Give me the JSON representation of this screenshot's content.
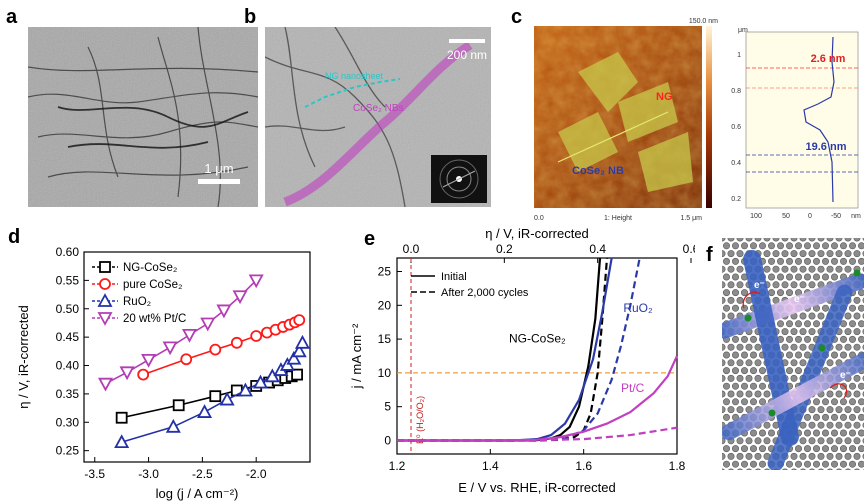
{
  "panels": {
    "a": {
      "letter": "a",
      "scalebar": "1 μm"
    },
    "b": {
      "letter": "b",
      "scalebar": "200 nm",
      "label_ng": "NG nanosheet",
      "label_cose": "CoSe₂ NBs"
    },
    "c": {
      "letter": "c",
      "colorbar_max": "150.0 nm",
      "label_ng": "NG",
      "label_cose": "CoSe₂ NB",
      "x_axis_left": "0.0",
      "x_axis_mid": "1: Height",
      "x_axis_right": "1.5 μm",
      "profile_unit": "μm",
      "profile_yticks": [
        "1",
        "0.8",
        "0.6",
        "0.4",
        "0.2"
      ],
      "profile_xticks": [
        "100",
        "50",
        "0",
        "-50",
        "nm"
      ],
      "profile_label_top": "2.6 nm",
      "profile_label_bottom": "19.6 nm"
    },
    "d": {
      "letter": "d"
    },
    "e": {
      "letter": "e"
    },
    "f": {
      "letter": "f",
      "electron_label": "e⁻"
    }
  },
  "chart_data": [
    {
      "id": "d",
      "type": "line",
      "xlabel": "log (j / A cm⁻²)",
      "ylabel": "η / V, iR-corrected",
      "xlim": [
        -3.6,
        -1.5
      ],
      "ylim": [
        0.23,
        0.6
      ],
      "xticks": [
        -3.5,
        -3.0,
        -2.5,
        -2.0
      ],
      "yticks": [
        0.25,
        0.3,
        0.35,
        0.4,
        0.45,
        0.5,
        0.55,
        0.6
      ],
      "legend_position": "top-left",
      "series": [
        {
          "name": "NG-CoSe₂",
          "color": "#000000",
          "marker": "square",
          "x": [
            -3.25,
            -2.72,
            -2.38,
            -2.18,
            -2.0,
            -1.88,
            -1.8,
            -1.73,
            -1.67,
            -1.62
          ],
          "y": [
            0.308,
            0.33,
            0.346,
            0.356,
            0.364,
            0.37,
            0.374,
            0.378,
            0.381,
            0.384
          ]
        },
        {
          "name": "pure CoSe₂",
          "color": "#ff1a1a",
          "marker": "circle",
          "x": [
            -3.05,
            -2.65,
            -2.38,
            -2.18,
            -2.0,
            -1.9,
            -1.82,
            -1.75,
            -1.69,
            -1.64,
            -1.6
          ],
          "y": [
            0.384,
            0.411,
            0.428,
            0.44,
            0.452,
            0.458,
            0.463,
            0.468,
            0.472,
            0.476,
            0.48
          ]
        },
        {
          "name": "RuO₂",
          "color": "#2330a8",
          "marker": "triangle-up",
          "x": [
            -3.25,
            -2.77,
            -2.48,
            -2.27,
            -2.1,
            -1.96,
            -1.85,
            -1.77,
            -1.71,
            -1.65,
            -1.6,
            -1.57
          ],
          "y": [
            0.265,
            0.292,
            0.318,
            0.34,
            0.356,
            0.37,
            0.381,
            0.392,
            0.401,
            0.412,
            0.425,
            0.44
          ]
        },
        {
          "name": "20 wt% Pt/C",
          "color": "#b43cb4",
          "marker": "triangle-down",
          "x": [
            -3.4,
            -3.2,
            -3.0,
            -2.8,
            -2.62,
            -2.45,
            -2.3,
            -2.15,
            -2.0
          ],
          "y": [
            0.368,
            0.388,
            0.41,
            0.432,
            0.454,
            0.474,
            0.497,
            0.522,
            0.55
          ]
        }
      ]
    },
    {
      "id": "e",
      "type": "line",
      "xlabel": "E / V vs. RHE, iR-corrected",
      "x2label": "η / V, iR-corrected",
      "ylabel": "j / mA cm⁻²",
      "xlim": [
        1.2,
        1.8
      ],
      "x2lim": [
        -0.03,
        0.57
      ],
      "ylim": [
        -2,
        27
      ],
      "xticks": [
        1.2,
        1.4,
        1.6,
        1.8
      ],
      "x2ticks": [
        0.0,
        0.2,
        0.4,
        0.6
      ],
      "yticks": [
        0,
        5,
        10,
        15,
        20,
        25
      ],
      "legend": [
        "Initial",
        "After 2,000 cycles"
      ],
      "legend_position": "top-left",
      "series_labels": [
        "NG-CoSe₂",
        "RuO₂",
        "Pt/C"
      ],
      "annotation": "E⁰ (H₂O/O₂)",
      "reference_lines": {
        "vertical_x": 1.23,
        "horizontal_y": 10
      },
      "series": [
        {
          "name": "NG-CoSe₂ initial",
          "color": "#000000",
          "dash": false,
          "x": [
            1.2,
            1.45,
            1.5,
            1.53,
            1.55,
            1.57,
            1.59,
            1.61,
            1.625,
            1.635
          ],
          "y": [
            0,
            0,
            0.05,
            0.3,
            0.8,
            2.0,
            5.0,
            11.0,
            18.0,
            27.0
          ]
        },
        {
          "name": "NG-CoSe₂ cycled",
          "color": "#000000",
          "dash": true,
          "x": [
            1.2,
            1.5,
            1.55,
            1.58,
            1.6,
            1.615,
            1.63,
            1.64,
            1.65
          ],
          "y": [
            0,
            0,
            0.1,
            0.5,
            1.5,
            4.0,
            10.0,
            18.0,
            27.0
          ]
        },
        {
          "name": "RuO₂ initial",
          "color": "#2b3aa8",
          "dash": false,
          "x": [
            1.2,
            1.45,
            1.5,
            1.53,
            1.56,
            1.59,
            1.62,
            1.64,
            1.66
          ],
          "y": [
            0,
            0,
            0.2,
            0.8,
            2.5,
            6.0,
            12.0,
            19.0,
            27.0
          ]
        },
        {
          "name": "RuO₂ cycled",
          "color": "#2b3aa8",
          "dash": true,
          "x": [
            1.2,
            1.5,
            1.56,
            1.6,
            1.63,
            1.66,
            1.68,
            1.7,
            1.72
          ],
          "y": [
            0,
            0,
            0.3,
            1.5,
            4.0,
            9.0,
            14.0,
            20.0,
            27.0
          ]
        },
        {
          "name": "Pt/C initial",
          "color": "#c040c0",
          "dash": false,
          "x": [
            1.2,
            1.4,
            1.5,
            1.55,
            1.6,
            1.65,
            1.7,
            1.75,
            1.78,
            1.8
          ],
          "y": [
            0,
            0,
            0.1,
            0.5,
            1.3,
            2.5,
            4.2,
            7.0,
            9.5,
            12.5
          ]
        },
        {
          "name": "Pt/C cycled",
          "color": "#c040c0",
          "dash": true,
          "x": [
            1.2,
            1.45,
            1.5,
            1.6,
            1.7,
            1.8
          ],
          "y": [
            0,
            0,
            0.05,
            0.2,
            0.8,
            1.9
          ]
        }
      ]
    }
  ]
}
